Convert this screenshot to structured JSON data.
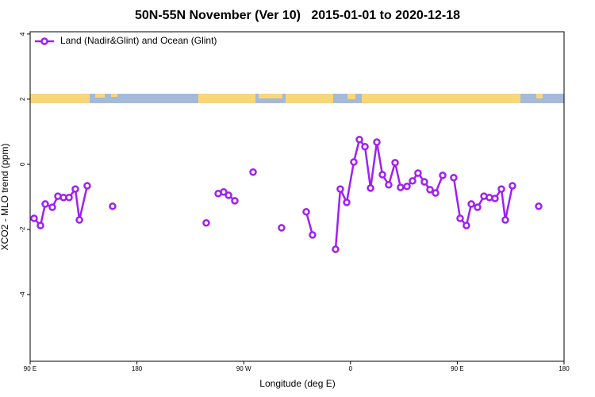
{
  "chart_data": {
    "type": "line",
    "title": "50N-55N November (Ver 10)   2015-01-01 to 2020-12-18",
    "xlabel": "Longitude (deg E)",
    "ylabel": "XCO2 - MLO trend (ppm)",
    "xlim": [
      90,
      540
    ],
    "xticks": [
      {
        "value": 90,
        "label": "90 E"
      },
      {
        "value": 180,
        "label": "180"
      },
      {
        "value": 270,
        "label": "90 W"
      },
      {
        "value": 360,
        "label": "0"
      },
      {
        "value": 450,
        "label": "90 E"
      },
      {
        "value": 540,
        "label": "180"
      }
    ],
    "ylim": [
      -6.05,
      4.07
    ],
    "yticks": [
      -4,
      -2,
      0,
      2,
      4
    ],
    "legend": "top-left",
    "series": [
      {
        "name": "Land (Nadir&Glint) and Ocean (Glint)",
        "color": "#a020f0",
        "x": [
          93.3,
          98.7,
          102.7,
          108.7,
          113.4,
          118.1,
          122.8,
          128.1,
          131.5,
          138.1,
          null,
          159.5,
          null,
          238.4,
          null,
          248.5,
          253.1,
          257.2,
          262.5,
          null,
          277.9,
          null,
          301.9,
          null,
          322.7,
          328.0,
          null,
          347.4,
          351.4,
          356.8,
          362.8,
          367.5,
          372.2,
          376.9,
          382.2,
          386.9,
          392.2,
          397.6,
          402.2,
          407.6,
          412.3,
          416.9,
          422.3,
          427.0,
          431.7,
          437.7,
          null,
          447.0,
          452.4,
          457.7,
          461.8,
          467.1,
          472.5,
          477.1,
          481.8,
          487.2,
          490.5,
          496.5,
          null,
          518.6
        ],
        "values": [
          -1.66,
          -1.88,
          -1.22,
          -1.32,
          -0.98,
          -1.02,
          -1.02,
          -0.76,
          -1.71,
          -0.66,
          null,
          -1.29,
          null,
          -1.8,
          null,
          -0.9,
          -0.85,
          -0.95,
          -1.12,
          null,
          -0.24,
          null,
          -1.95,
          null,
          -1.46,
          -2.17,
          null,
          -2.61,
          -0.76,
          -1.17,
          0.07,
          0.76,
          0.54,
          -0.73,
          0.68,
          -0.32,
          -0.63,
          0.05,
          -0.71,
          -0.68,
          -0.51,
          -0.27,
          -0.54,
          -0.78,
          -0.88,
          -0.34,
          null,
          -0.41,
          -1.66,
          -1.88,
          -1.22,
          -1.32,
          -0.98,
          -1.02,
          -1.05,
          -0.76,
          -1.71,
          -0.66,
          null,
          -1.29
        ]
      }
    ]
  }
}
